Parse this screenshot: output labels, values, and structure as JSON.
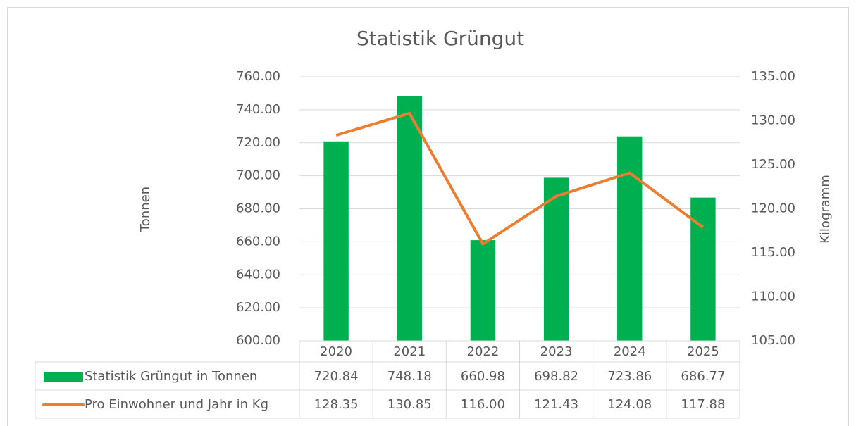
{
  "chart_data": {
    "type": "bar_line",
    "title": "Statistik Grüngut",
    "ylabel": "Tonnen",
    "y2label": "Kilogramm",
    "categories": [
      "2020",
      "2021",
      "2022",
      "2023",
      "2024",
      "2025"
    ],
    "series": [
      {
        "name": "Statistik Grüngut in Tonnen",
        "type": "bar",
        "color": "#00b050",
        "values": [
          720.84,
          748.18,
          660.98,
          698.82,
          723.86,
          686.77
        ]
      },
      {
        "name": "Pro Einwohner und Jahr in Kg",
        "type": "line",
        "axis": "y2",
        "color": "#ed7d31",
        "values": [
          128.35,
          130.85,
          116.0,
          121.43,
          124.08,
          117.88
        ],
        "value_labels": [
          "128.35",
          "130.85",
          "116.00",
          "121.43",
          "124.08",
          "117.88"
        ]
      }
    ],
    "ylim": [
      600,
      760
    ],
    "yticks": [
      {
        "value": 600,
        "label": "600.00"
      },
      {
        "value": 620,
        "label": "620.00"
      },
      {
        "value": 640,
        "label": "640.00"
      },
      {
        "value": 660,
        "label": "660.00"
      },
      {
        "value": 680,
        "label": "680.00"
      },
      {
        "value": 700,
        "label": "700.00"
      },
      {
        "value": 720,
        "label": "720.00"
      },
      {
        "value": 740,
        "label": "740.00"
      },
      {
        "value": 760,
        "label": "760.00"
      }
    ],
    "y2lim": [
      105,
      135
    ],
    "y2ticks": [
      {
        "value": 105,
        "label": "105.00"
      },
      {
        "value": 110,
        "label": "110.00"
      },
      {
        "value": 115,
        "label": "115.00"
      },
      {
        "value": 120,
        "label": "120.00"
      },
      {
        "value": 125,
        "label": "125.00"
      },
      {
        "value": 130,
        "label": "130.00"
      },
      {
        "value": 135,
        "label": "135.00"
      }
    ],
    "grid": true,
    "data_table": true
  }
}
